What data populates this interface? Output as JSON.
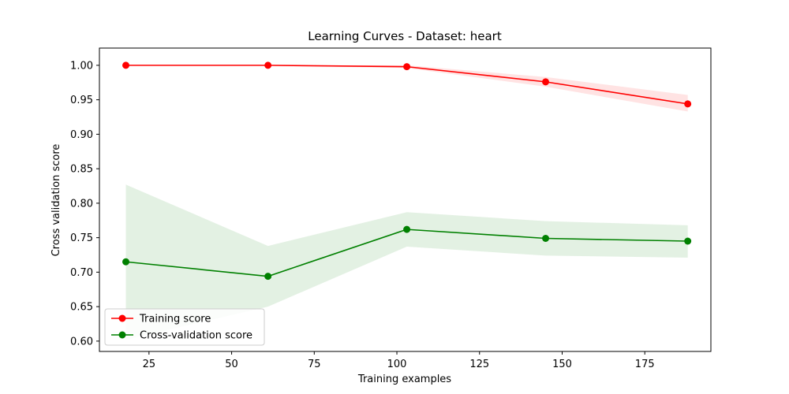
{
  "chart_data": {
    "type": "line",
    "title": "Learning Curves - Dataset: heart",
    "xlabel": "Training examples",
    "ylabel": "Cross validation score",
    "xlim": [
      10,
      195
    ],
    "ylim": [
      0.585,
      1.025
    ],
    "xticks": [
      25,
      50,
      75,
      100,
      125,
      150,
      175
    ],
    "yticks": [
      0.6,
      0.65,
      0.7,
      0.75,
      0.8,
      0.85,
      0.9,
      0.95,
      1.0
    ],
    "x": [
      18,
      61,
      103,
      145,
      188
    ],
    "grid": false,
    "legend_position": "lower-left",
    "series": [
      {
        "name": "Training score",
        "color": "#ff0000",
        "band_color": "#ff0000",
        "values": [
          1.0,
          1.0,
          0.998,
          0.976,
          0.944
        ],
        "lower": [
          1.0,
          1.0,
          0.996,
          0.969,
          0.933
        ],
        "upper": [
          1.0,
          1.0,
          1.0,
          0.983,
          0.957
        ]
      },
      {
        "name": "Cross-validation score",
        "color": "#008000",
        "band_color": "#008000",
        "values": [
          0.715,
          0.694,
          0.762,
          0.749,
          0.745
        ],
        "lower": [
          0.602,
          0.65,
          0.737,
          0.724,
          0.721
        ],
        "upper": [
          0.827,
          0.738,
          0.787,
          0.774,
          0.768
        ]
      }
    ]
  }
}
